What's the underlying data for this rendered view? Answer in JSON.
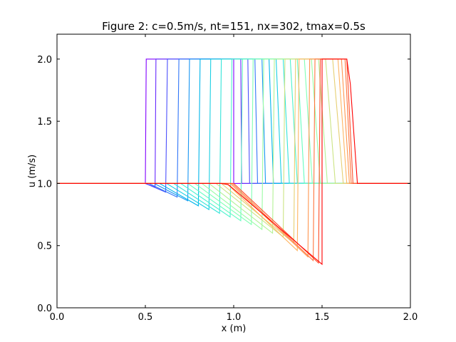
{
  "chart_data": {
    "type": "line",
    "title": "Figure 2: c=0.5m/s, nt=151, nx=302, tmax=0.5s",
    "xlabel": "x (m)",
    "ylabel": "u (m/s)",
    "xlim": [
      0.0,
      2.0
    ],
    "ylim": [
      0.0,
      2.2
    ],
    "xticks": [
      0.0,
      0.5,
      1.0,
      1.5,
      2.0
    ],
    "xtick_labels": [
      "0.0",
      "0.5",
      "1.0",
      "1.5",
      "2.0"
    ],
    "yticks": [
      0.0,
      0.5,
      1.0,
      1.5,
      2.0
    ],
    "ytick_labels": [
      "0.0",
      "0.5",
      "1.0",
      "1.5",
      "2.0"
    ],
    "grid": false,
    "legend": "none",
    "series": [
      {
        "color": "#8000ff",
        "x": [
          0.0,
          0.5,
          0.505,
          1.0,
          1.0,
          2.0
        ],
        "y": [
          1.0,
          1.0,
          2.0,
          2.0,
          1.0,
          1.0
        ]
      },
      {
        "color": "#6629fe",
        "x": [
          0.0,
          0.5,
          0.555,
          0.56,
          1.04,
          1.045,
          2.0
        ],
        "y": [
          1.0,
          1.0,
          0.97,
          2.0,
          2.0,
          1.0,
          1.0
        ]
      },
      {
        "color": "#4c50fc",
        "x": [
          0.0,
          0.5,
          0.615,
          0.625,
          1.08,
          1.09,
          2.0
        ],
        "y": [
          1.0,
          1.0,
          0.93,
          2.0,
          2.0,
          1.0,
          1.0
        ]
      },
      {
        "color": "#3176f8",
        "x": [
          0.0,
          0.52,
          0.68,
          0.69,
          1.12,
          1.135,
          2.0
        ],
        "y": [
          1.0,
          1.0,
          0.89,
          2.0,
          2.0,
          1.0,
          1.0
        ]
      },
      {
        "color": "#1996f3",
        "x": [
          0.0,
          0.55,
          0.74,
          0.75,
          1.16,
          1.18,
          2.0
        ],
        "y": [
          1.0,
          1.0,
          0.86,
          2.0,
          2.0,
          1.0,
          1.0
        ]
      },
      {
        "color": "#00b5eb",
        "x": [
          0.0,
          0.58,
          0.8,
          0.81,
          1.2,
          1.225,
          2.0
        ],
        "y": [
          1.0,
          1.0,
          0.82,
          2.0,
          2.0,
          1.0,
          1.0
        ]
      },
      {
        "color": "#1acfe3",
        "x": [
          0.0,
          0.62,
          0.86,
          0.87,
          1.24,
          1.27,
          2.0
        ],
        "y": [
          1.0,
          1.0,
          0.79,
          2.0,
          2.0,
          1.0,
          1.0
        ]
      },
      {
        "color": "#33e4d9",
        "x": [
          0.0,
          0.66,
          0.92,
          0.93,
          1.28,
          1.315,
          2.0
        ],
        "y": [
          1.0,
          1.0,
          0.76,
          2.0,
          2.0,
          1.0,
          1.0
        ]
      },
      {
        "color": "#4cf2ce",
        "x": [
          0.0,
          0.7,
          0.98,
          0.99,
          1.32,
          1.36,
          2.0
        ],
        "y": [
          1.0,
          1.0,
          0.73,
          2.0,
          2.0,
          1.0,
          1.0
        ]
      },
      {
        "color": "#66fcc0",
        "x": [
          0.0,
          0.74,
          1.04,
          1.05,
          1.36,
          1.4,
          2.0
        ],
        "y": [
          1.0,
          1.0,
          0.7,
          2.0,
          2.0,
          1.0,
          1.0
        ]
      },
      {
        "color": "#80ffb4",
        "x": [
          0.0,
          0.78,
          1.1,
          1.11,
          1.4,
          1.445,
          2.0
        ],
        "y": [
          1.0,
          1.0,
          0.67,
          2.0,
          2.0,
          1.0,
          1.0
        ]
      },
      {
        "color": "#9afca4",
        "x": [
          0.0,
          0.82,
          1.16,
          1.17,
          1.44,
          1.49,
          2.0
        ],
        "y": [
          1.0,
          1.0,
          0.63,
          2.0,
          2.0,
          1.0,
          1.0
        ]
      },
      {
        "color": "#b3f295",
        "x": [
          0.0,
          0.86,
          1.22,
          1.23,
          1.48,
          1.53,
          2.0
        ],
        "y": [
          1.0,
          1.0,
          0.6,
          2.0,
          2.0,
          1.0,
          1.0
        ]
      },
      {
        "color": "#cce484",
        "x": [
          0.0,
          0.9,
          1.28,
          1.29,
          1.52,
          1.575,
          2.0
        ],
        "y": [
          1.0,
          1.0,
          0.57,
          2.0,
          2.0,
          1.0,
          1.0
        ]
      },
      {
        "color": "#e6cf73",
        "x": [
          0.0,
          0.93,
          1.34,
          1.35,
          1.56,
          1.62,
          2.0
        ],
        "y": [
          1.0,
          1.0,
          0.52,
          2.0,
          2.0,
          1.0,
          1.0
        ]
      },
      {
        "color": "#ffb562",
        "x": [
          0.0,
          0.96,
          1.36,
          1.37,
          1.59,
          1.64,
          2.0
        ],
        "y": [
          1.0,
          1.0,
          0.46,
          2.0,
          2.0,
          1.0,
          1.0
        ]
      },
      {
        "color": "#ff9650",
        "x": [
          0.0,
          0.98,
          1.42,
          1.43,
          1.61,
          1.655,
          2.0
        ],
        "y": [
          1.0,
          1.0,
          0.41,
          2.0,
          2.0,
          1.0,
          1.0
        ]
      },
      {
        "color": "#ff763f",
        "x": [
          0.0,
          0.99,
          1.45,
          1.46,
          1.63,
          1.665,
          2.0
        ],
        "y": [
          1.0,
          1.0,
          0.38,
          2.0,
          2.0,
          1.0,
          1.0
        ]
      },
      {
        "color": "#ff502a",
        "x": [
          0.0,
          1.0,
          1.48,
          1.49,
          1.64,
          1.675,
          2.0
        ],
        "y": [
          1.0,
          1.0,
          0.36,
          2.0,
          2.0,
          1.0,
          1.0
        ]
      },
      {
        "color": "#ff0000",
        "x": [
          0.0,
          0.93,
          0.97,
          1.5,
          1.5,
          1.64,
          1.66,
          1.7,
          2.0
        ],
        "y": [
          1.0,
          1.0,
          0.99,
          0.35,
          2.0,
          2.0,
          1.8,
          1.0,
          1.0
        ]
      }
    ]
  }
}
